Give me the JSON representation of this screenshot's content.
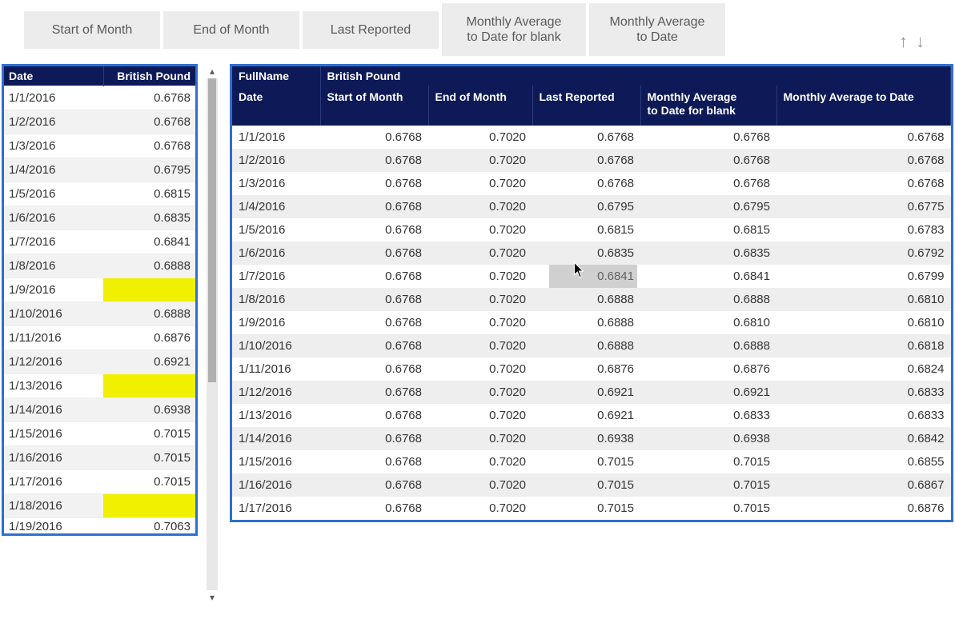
{
  "buttons": {
    "b1": "Start of Month",
    "b2": "End of Month",
    "b3": "Last Reported",
    "b4": "Monthly Average\nto Date for blank",
    "b5": "Monthly Average\nto Date"
  },
  "left": {
    "h_date": "Date",
    "h_val": "British Pound",
    "rows": [
      {
        "date": "1/1/2016",
        "val": "0.6768"
      },
      {
        "date": "1/2/2016",
        "val": "0.6768"
      },
      {
        "date": "1/3/2016",
        "val": "0.6768"
      },
      {
        "date": "1/4/2016",
        "val": "0.6795"
      },
      {
        "date": "1/5/2016",
        "val": "0.6815"
      },
      {
        "date": "1/6/2016",
        "val": "0.6835"
      },
      {
        "date": "1/7/2016",
        "val": "0.6841"
      },
      {
        "date": "1/8/2016",
        "val": "0.6888"
      },
      {
        "date": "1/9/2016",
        "val": ""
      },
      {
        "date": "1/10/2016",
        "val": "0.6888"
      },
      {
        "date": "1/11/2016",
        "val": "0.6876"
      },
      {
        "date": "1/12/2016",
        "val": "0.6921"
      },
      {
        "date": "1/13/2016",
        "val": ""
      },
      {
        "date": "1/14/2016",
        "val": "0.6938"
      },
      {
        "date": "1/15/2016",
        "val": "0.7015"
      },
      {
        "date": "1/16/2016",
        "val": "0.7015"
      },
      {
        "date": "1/17/2016",
        "val": "0.7015"
      },
      {
        "date": "1/18/2016",
        "val": ""
      },
      {
        "date": "1/19/2016",
        "val": "0.7063"
      }
    ]
  },
  "right": {
    "sup_fullname": "FullName",
    "sup_val": "British Pound",
    "h_date": "Date",
    "h_som": "Start of Month",
    "h_eom": "End of Month",
    "h_lr": "Last Reported",
    "h_mab": "Monthly Average\nto Date for blank",
    "h_mad": "Monthly Average to Date",
    "rows": [
      {
        "date": "1/1/2016",
        "som": "0.6768",
        "eom": "0.7020",
        "lr": "0.6768",
        "mab": "0.6768",
        "mad": "0.6768"
      },
      {
        "date": "1/2/2016",
        "som": "0.6768",
        "eom": "0.7020",
        "lr": "0.6768",
        "mab": "0.6768",
        "mad": "0.6768"
      },
      {
        "date": "1/3/2016",
        "som": "0.6768",
        "eom": "0.7020",
        "lr": "0.6768",
        "mab": "0.6768",
        "mad": "0.6768"
      },
      {
        "date": "1/4/2016",
        "som": "0.6768",
        "eom": "0.7020",
        "lr": "0.6795",
        "mab": "0.6795",
        "mad": "0.6775"
      },
      {
        "date": "1/5/2016",
        "som": "0.6768",
        "eom": "0.7020",
        "lr": "0.6815",
        "mab": "0.6815",
        "mad": "0.6783"
      },
      {
        "date": "1/6/2016",
        "som": "0.6768",
        "eom": "0.7020",
        "lr": "0.6835",
        "mab": "0.6835",
        "mad": "0.6792"
      },
      {
        "date": "1/7/2016",
        "som": "0.6768",
        "eom": "0.7020",
        "lr": "0.6841",
        "mab": "0.6841",
        "mad": "0.6799",
        "cursor": true
      },
      {
        "date": "1/8/2016",
        "som": "0.6768",
        "eom": "0.7020",
        "lr": "0.6888",
        "mab": "0.6888",
        "mad": "0.6810"
      },
      {
        "date": "1/9/2016",
        "som": "0.6768",
        "eom": "0.7020",
        "lr": "0.6888",
        "mab": "0.6810",
        "mad": "0.6810"
      },
      {
        "date": "1/10/2016",
        "som": "0.6768",
        "eom": "0.7020",
        "lr": "0.6888",
        "mab": "0.6888",
        "mad": "0.6818"
      },
      {
        "date": "1/11/2016",
        "som": "0.6768",
        "eom": "0.7020",
        "lr": "0.6876",
        "mab": "0.6876",
        "mad": "0.6824"
      },
      {
        "date": "1/12/2016",
        "som": "0.6768",
        "eom": "0.7020",
        "lr": "0.6921",
        "mab": "0.6921",
        "mad": "0.6833"
      },
      {
        "date": "1/13/2016",
        "som": "0.6768",
        "eom": "0.7020",
        "lr": "0.6921",
        "mab": "0.6833",
        "mad": "0.6833"
      },
      {
        "date": "1/14/2016",
        "som": "0.6768",
        "eom": "0.7020",
        "lr": "0.6938",
        "mab": "0.6938",
        "mad": "0.6842"
      },
      {
        "date": "1/15/2016",
        "som": "0.6768",
        "eom": "0.7020",
        "lr": "0.7015",
        "mab": "0.7015",
        "mad": "0.6855"
      },
      {
        "date": "1/16/2016",
        "som": "0.6768",
        "eom": "0.7020",
        "lr": "0.7015",
        "mab": "0.7015",
        "mad": "0.6867"
      },
      {
        "date": "1/17/2016",
        "som": "0.6768",
        "eom": "0.7020",
        "lr": "0.7015",
        "mab": "0.7015",
        "mad": "0.6876"
      }
    ]
  },
  "colors": {
    "header_bg": "#0d1a57",
    "border": "#2e6fd1",
    "highlight": "#f0f000",
    "stripe": "#eeeeee"
  }
}
